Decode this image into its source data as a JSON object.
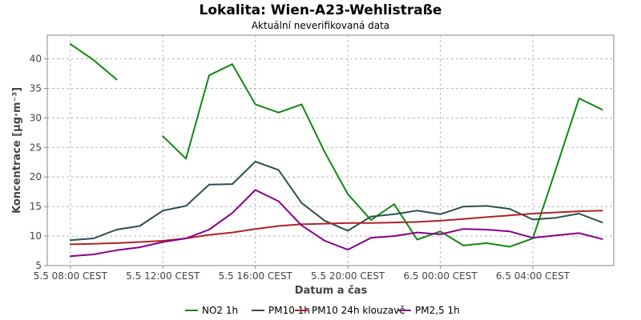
{
  "chart_data": {
    "type": "line",
    "title": "Lokalita: Wien-A23-Wehlistraße",
    "subtitle": "Aktuální neverifikovaná data",
    "xlabel": "Datum a čas",
    "ylabel": "Koncentrace [µg·m⁻³]",
    "x_ticks": [
      {
        "hours": 0,
        "label": "5.5 08:00 CEST"
      },
      {
        "hours": 4,
        "label": "5.5 12:00 CEST"
      },
      {
        "hours": 8,
        "label": "5.5 16:00 CEST"
      },
      {
        "hours": 12,
        "label": "5.5 20:00 CEST"
      },
      {
        "hours": 16,
        "label": "6.5 00:00 CEST"
      },
      {
        "hours": 20,
        "label": "6.5 04:00 CEST"
      }
    ],
    "xlim": [
      -1,
      23.5
    ],
    "ylim": [
      5,
      44
    ],
    "y_ticks": [
      5,
      10,
      15,
      20,
      25,
      30,
      35,
      40
    ],
    "grid": true,
    "legend_position": "bottom",
    "x_hours": [
      0,
      1,
      2,
      3,
      4,
      5,
      6,
      7,
      8,
      9,
      10,
      11,
      12,
      13,
      14,
      15,
      16,
      17,
      18,
      19,
      20,
      21,
      22,
      23
    ],
    "series": [
      {
        "name": "NO2 1h",
        "color": "#118811",
        "values": [
          42.5,
          39.8,
          36.5,
          null,
          26.9,
          23.1,
          37.2,
          39.1,
          32.3,
          30.9,
          32.3,
          24.2,
          17.1,
          12.7,
          15.4,
          9.4,
          10.8,
          8.4,
          8.8,
          8.2,
          9.6,
          21.4,
          33.3,
          31.4
        ]
      },
      {
        "name": "PM10 1h",
        "color": "#2e4f4f",
        "values": [
          9.3,
          9.6,
          11.1,
          11.7,
          14.3,
          15.1,
          18.7,
          18.8,
          22.6,
          21.2,
          15.6,
          12.6,
          10.9,
          13.3,
          13.7,
          14.3,
          13.7,
          15.0,
          15.1,
          14.6,
          12.8,
          13.1,
          13.8,
          12.3
        ]
      },
      {
        "name": "PM10 24h klouzavě",
        "color": "#b02222",
        "values": [
          8.6,
          8.7,
          8.8,
          9.0,
          9.2,
          9.6,
          10.2,
          10.6,
          11.2,
          11.7,
          12.0,
          12.1,
          12.2,
          12.2,
          12.3,
          12.4,
          12.6,
          12.9,
          13.2,
          13.5,
          13.8,
          14.0,
          14.2,
          14.3
        ]
      },
      {
        "name": "PM2,5 1h",
        "color": "#880088",
        "values": [
          6.6,
          6.9,
          7.6,
          8.1,
          9.0,
          9.6,
          11.1,
          13.9,
          17.8,
          15.9,
          11.8,
          9.2,
          7.7,
          9.7,
          10.0,
          10.6,
          10.3,
          11.2,
          11.1,
          10.8,
          9.7,
          10.1,
          10.5,
          9.5
        ]
      }
    ]
  }
}
